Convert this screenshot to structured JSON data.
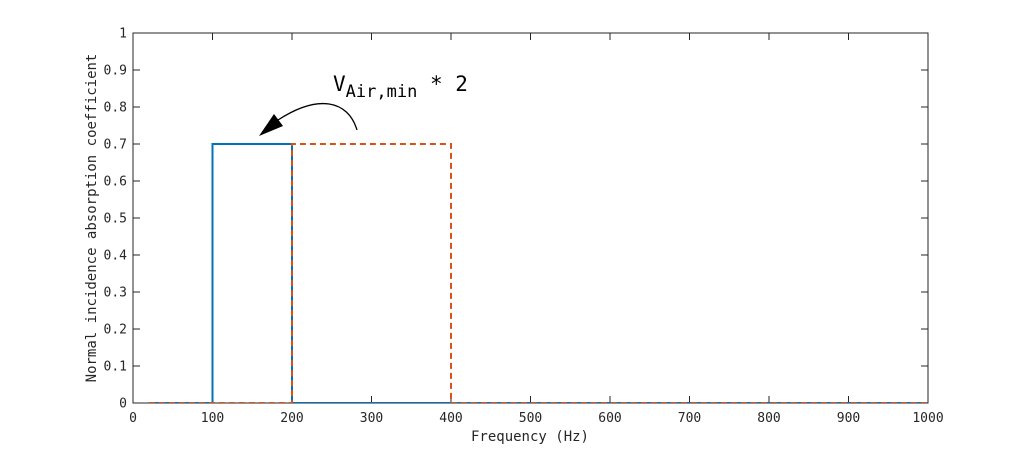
{
  "chart_data": {
    "type": "line",
    "xlabel": "Frequency (Hz)",
    "ylabel": "Normal incidence absorption coefficient",
    "xlim": [
      0,
      1000
    ],
    "ylim": [
      0,
      1
    ],
    "x_ticks": [
      "0",
      "100",
      "200",
      "300",
      "400",
      "500",
      "600",
      "700",
      "800",
      "900",
      "1000"
    ],
    "y_ticks": [
      "0",
      "0.1",
      "0.2",
      "0.3",
      "0.4",
      "0.5",
      "0.6",
      "0.7",
      "0.8",
      "0.9",
      "1"
    ],
    "grid": false,
    "series": [
      {
        "style": "solid",
        "color": "#0072BD",
        "points": [
          [
            20,
            0
          ],
          [
            100,
            0
          ],
          [
            100,
            0.7
          ],
          [
            200,
            0.7
          ],
          [
            200,
            0
          ],
          [
            1000,
            0
          ]
        ]
      },
      {
        "style": "dashed",
        "color": "#D95319",
        "points": [
          [
            20,
            0
          ],
          [
            200,
            0
          ],
          [
            200,
            0.7
          ],
          [
            400,
            0.7
          ],
          [
            400,
            0
          ],
          [
            1000,
            0
          ]
        ]
      }
    ],
    "annotation": {
      "base": "V",
      "subscript": "Air,min",
      "suffix": " * 2"
    }
  }
}
